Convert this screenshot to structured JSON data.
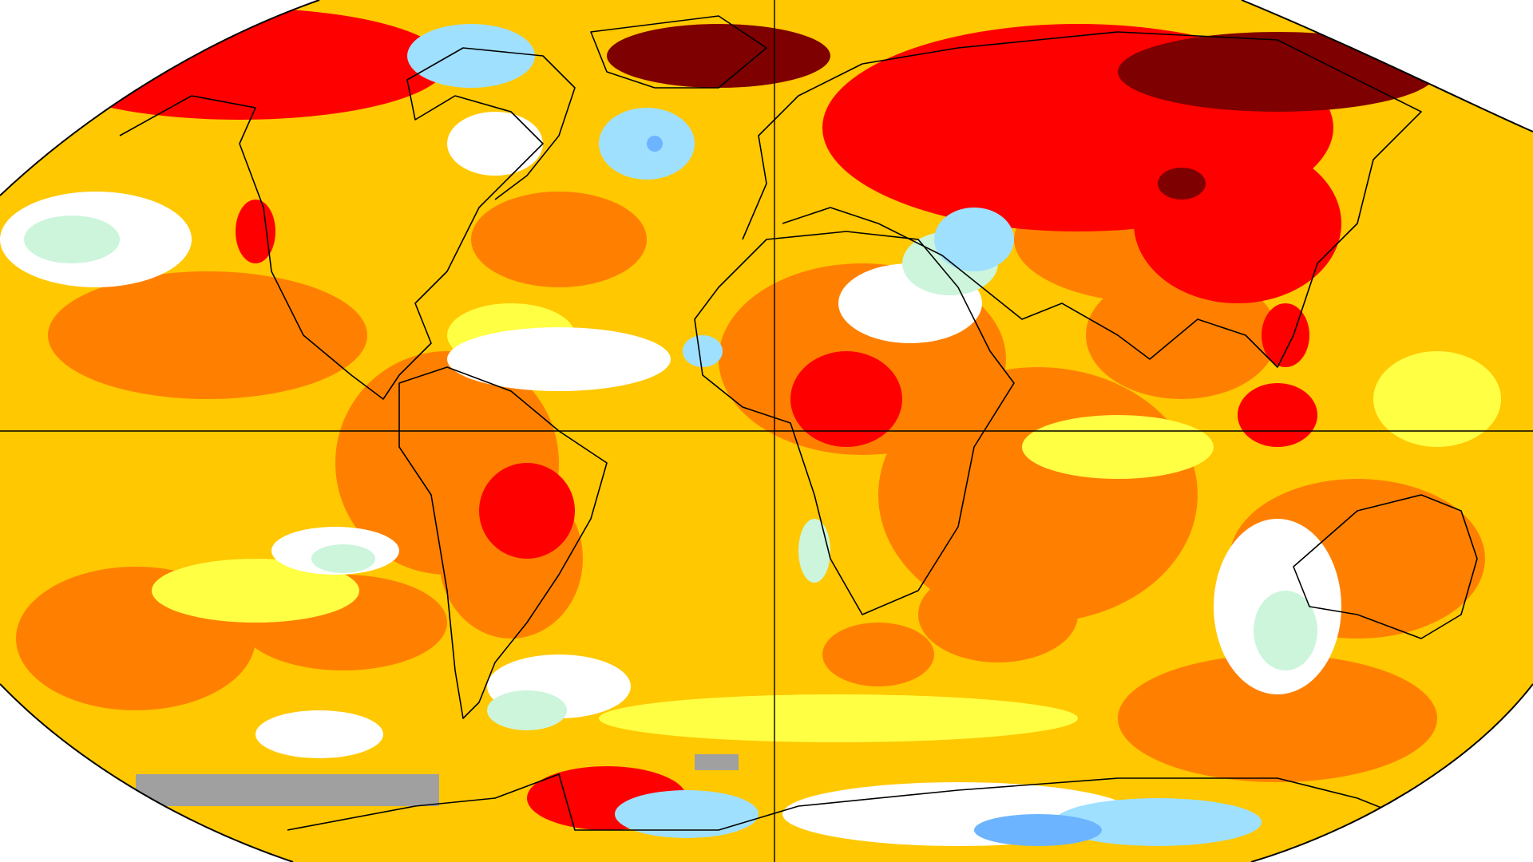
{
  "map": {
    "projection": "robinson-like",
    "palette": {
      "dark_red": "#7f0000",
      "red": "#ff0000",
      "orange": "#ff8000",
      "gold": "#ffc800",
      "yellow": "#ffff44",
      "white": "#ffffff",
      "light_green": "#ccf5dc",
      "light_blue": "#9fe0ff",
      "blue": "#6cb4ff",
      "gray": "#a0a0a0"
    },
    "gridlines": [
      "equator",
      "prime-meridian"
    ],
    "legend": "none"
  }
}
